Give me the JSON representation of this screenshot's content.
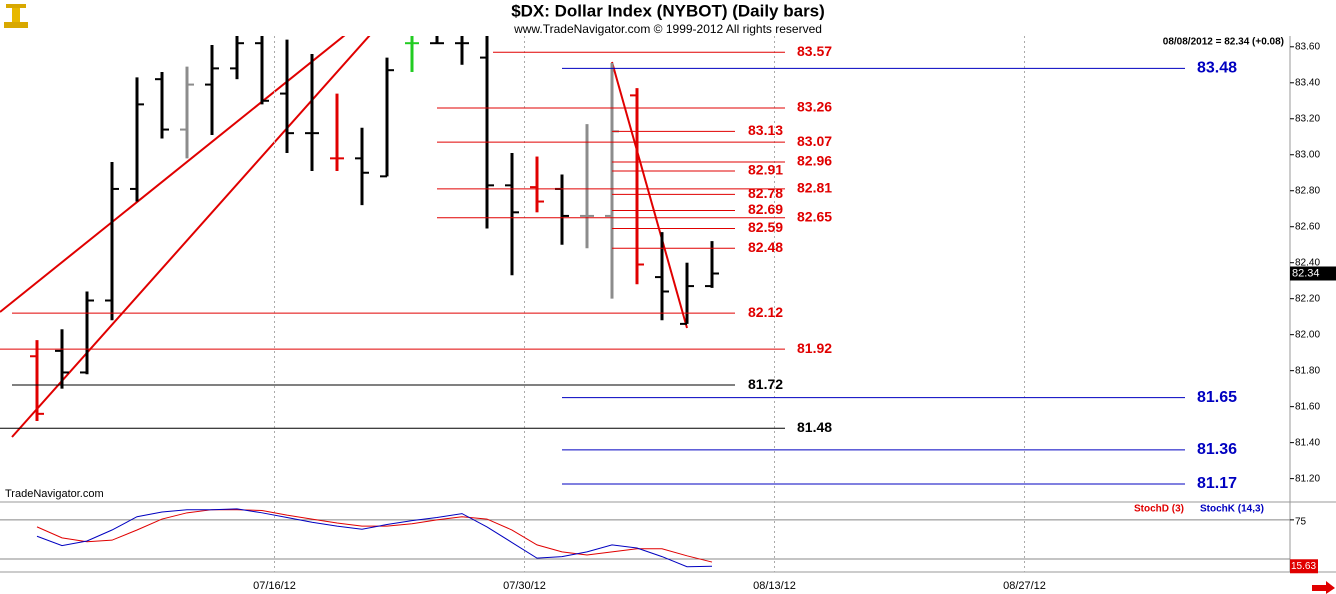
{
  "header": {
    "source": "www.TradeNavigator.com © 1999-2012 All rights reserved",
    "quote": "08/08/2012 = 82.34 (+0.08)",
    "watermark": "TradeNavigator.com"
  },
  "chart_data": [
    {
      "type": "ohlc",
      "title": "$DX:  Dollar Index (NYBOT)  (Daily bars)",
      "x": [
        "2012-07-02",
        "2012-07-03",
        "2012-07-04",
        "2012-07-05",
        "2012-07-06",
        "2012-07-09",
        "2012-07-10",
        "2012-07-11",
        "2012-07-12",
        "2012-07-13",
        "2012-07-16",
        "2012-07-17",
        "2012-07-18",
        "2012-07-19",
        "2012-07-20",
        "2012-07-23",
        "2012-07-24",
        "2012-07-25",
        "2012-07-26",
        "2012-07-27",
        "2012-07-30",
        "2012-07-31",
        "2012-08-01",
        "2012-08-02",
        "2012-08-03",
        "2012-08-06",
        "2012-08-07",
        "2012-08-08"
      ],
      "open": [
        81.88,
        81.91,
        81.79,
        82.19,
        82.81,
        83.42,
        83.14,
        83.39,
        83.48,
        83.62,
        83.34,
        83.12,
        82.98,
        82.98,
        82.88,
        83.62,
        83.62,
        83.62,
        83.54,
        82.83,
        82.82,
        82.81,
        82.66,
        82.66,
        83.33,
        82.32,
        82.06,
        82.27
      ],
      "high": [
        81.97,
        82.03,
        82.24,
        82.96,
        83.43,
        83.46,
        83.49,
        83.61,
        83.66,
        83.66,
        83.64,
        83.56,
        83.34,
        83.15,
        83.54,
        83.66,
        83.66,
        83.66,
        83.66,
        83.01,
        82.99,
        82.89,
        83.17,
        83.51,
        83.37,
        82.57,
        82.4,
        82.52
      ],
      "low": [
        81.52,
        81.7,
        81.78,
        82.08,
        82.74,
        83.09,
        82.98,
        83.11,
        83.42,
        83.28,
        83.01,
        82.91,
        82.91,
        82.72,
        82.88,
        83.46,
        83.62,
        83.5,
        82.59,
        82.33,
        82.68,
        82.5,
        82.48,
        82.2,
        82.28,
        82.08,
        82.06,
        82.26
      ],
      "close": [
        81.56,
        81.79,
        82.19,
        82.81,
        83.28,
        83.14,
        83.39,
        83.48,
        83.62,
        83.3,
        83.12,
        83.12,
        82.98,
        82.9,
        83.47,
        83.62,
        83.62,
        83.62,
        82.83,
        82.68,
        82.74,
        82.66,
        82.66,
        83.13,
        82.39,
        82.24,
        82.27,
        82.34
      ],
      "colors": [
        "#e00000",
        "#000000",
        "#000000",
        "#000000",
        "#000000",
        "#000000",
        "#8c8c8c",
        "#000000",
        "#000000",
        "#000000",
        "#000000",
        "#000000",
        "#e00000",
        "#000000",
        "#000000",
        "#22cc22",
        "#000000",
        "#000000",
        "#000000",
        "#000000",
        "#e00000",
        "#000000",
        "#8c8c8c",
        "#8c8c8c",
        "#e00000",
        "#000000",
        "#000000",
        "#000000"
      ],
      "xticks": [
        {
          "value": "2012-07-16",
          "label": "07/16/12"
        },
        {
          "value": "2012-07-30",
          "label": "07/30/12"
        },
        {
          "value": "2012-08-13",
          "label": "08/13/12"
        },
        {
          "value": "2012-08-27",
          "label": "08/27/12"
        }
      ],
      "ylim": [
        81.07,
        83.66
      ],
      "yticks": [
        {
          "value": 81.2,
          "label": "81.20"
        },
        {
          "value": 81.4,
          "label": "81.40"
        },
        {
          "value": 81.6,
          "label": "81.60"
        },
        {
          "value": 81.8,
          "label": "81.80"
        },
        {
          "value": 82.0,
          "label": "82.00"
        },
        {
          "value": 82.2,
          "label": "82.20"
        },
        {
          "value": 82.4,
          "label": "82.40"
        },
        {
          "value": 82.6,
          "label": "82.60"
        },
        {
          "value": 82.8,
          "label": "82.80"
        },
        {
          "value": 83.0,
          "label": "83.00"
        },
        {
          "value": 83.2,
          "label": "83.20"
        },
        {
          "value": 83.4,
          "label": "83.40"
        },
        {
          "value": 83.6,
          "label": "83.60"
        }
      ],
      "last_value": 82.34,
      "levels": [
        {
          "value": 83.57,
          "color": "#e00000"
        },
        {
          "value": 83.48,
          "color": "#0000c0"
        },
        {
          "value": 83.26,
          "color": "#e00000"
        },
        {
          "value": 83.13,
          "color": "#e00000"
        },
        {
          "value": 83.07,
          "color": "#e00000"
        },
        {
          "value": 82.96,
          "color": "#e00000"
        },
        {
          "value": 82.91,
          "color": "#e00000"
        },
        {
          "value": 82.81,
          "color": "#e00000"
        },
        {
          "value": 82.78,
          "color": "#e00000"
        },
        {
          "value": 82.69,
          "color": "#e00000"
        },
        {
          "value": 82.65,
          "color": "#e00000"
        },
        {
          "value": 82.59,
          "color": "#e00000"
        },
        {
          "value": 82.48,
          "color": "#e00000"
        },
        {
          "value": 82.12,
          "color": "#e00000"
        },
        {
          "value": 81.92,
          "color": "#e00000"
        },
        {
          "value": 81.72,
          "color": "#000000"
        },
        {
          "value": 81.65,
          "color": "#0000c0"
        },
        {
          "value": 81.48,
          "color": "#000000"
        },
        {
          "value": 81.36,
          "color": "#0000c0"
        },
        {
          "value": 81.17,
          "color": "#0000c0"
        }
      ]
    },
    {
      "type": "line",
      "series": [
        {
          "name": "StochD (3)",
          "color": "#e00000",
          "values": [
            66,
            52,
            47,
            49,
            62,
            76,
            84,
            88,
            88,
            87,
            81,
            76,
            71,
            67,
            67,
            70,
            75,
            79,
            76,
            62,
            43,
            34,
            30,
            34,
            38,
            38,
            29,
            21
          ]
        },
        {
          "name": "StochK (14,3)",
          "color": "#0000c0",
          "values": [
            54,
            42,
            48,
            62,
            79,
            85,
            88,
            88,
            89,
            84,
            78,
            72,
            67,
            63,
            69,
            74,
            78,
            83,
            66,
            46,
            26,
            28,
            34,
            43,
            39,
            28,
            15,
            15.63
          ]
        }
      ],
      "ylim": [
        8.3,
        94
      ],
      "yticks": [
        75
      ],
      "lines": [
        75,
        25
      ],
      "last_label": "15.63"
    }
  ]
}
